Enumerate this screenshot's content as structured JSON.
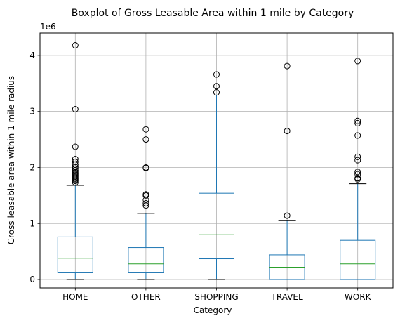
{
  "chart_data": {
    "type": "boxplot",
    "title": "Boxplot of Gross Leasable Area within 1 mile by Category",
    "xlabel": "Category",
    "ylabel": "Gross leasable area within 1 mile radius",
    "y_offset_label": "1e6",
    "y_scale": 1000000,
    "ylim": [
      -150000,
      4400000
    ],
    "yticks": [
      0,
      1000000,
      2000000,
      3000000,
      4000000
    ],
    "ytick_labels": [
      "0",
      "1",
      "2",
      "3",
      "4"
    ],
    "grid": true,
    "colors": {
      "box": "#1f77b4",
      "median": "#2ca02c",
      "whisker_cap": "#000000",
      "grid": "#b0b0b0"
    },
    "categories": [
      "HOME",
      "OTHER",
      "SHOPPING",
      "TRAVEL",
      "WORK"
    ],
    "boxes": [
      {
        "category": "HOME",
        "whisker_low": 0,
        "q1": 120000,
        "median": 380000,
        "q3": 760000,
        "whisker_high": 1680000,
        "outliers": [
          1730000,
          1760000,
          1780000,
          1800000,
          1820000,
          1840000,
          1860000,
          1880000,
          1900000,
          1920000,
          1950000,
          1980000,
          2010000,
          2050000,
          2100000,
          2150000,
          2370000,
          3040000,
          4180000
        ]
      },
      {
        "category": "OTHER",
        "whisker_low": 0,
        "q1": 120000,
        "median": 280000,
        "q3": 570000,
        "whisker_high": 1180000,
        "outliers": [
          1320000,
          1360000,
          1420000,
          1500000,
          1520000,
          1990000,
          2000000,
          2500000,
          2680000
        ]
      },
      {
        "category": "SHOPPING",
        "whisker_low": 0,
        "q1": 370000,
        "median": 800000,
        "q3": 1540000,
        "whisker_high": 3290000,
        "outliers": [
          3340000,
          3450000,
          3660000
        ]
      },
      {
        "category": "TRAVEL",
        "whisker_low": 0,
        "q1": 0,
        "median": 220000,
        "q3": 440000,
        "whisker_high": 1050000,
        "outliers": [
          1140000,
          2650000,
          3810000
        ]
      },
      {
        "category": "WORK",
        "whisker_low": 0,
        "q1": 0,
        "median": 280000,
        "q3": 700000,
        "whisker_high": 1710000,
        "outliers": [
          1790000,
          1810000,
          1880000,
          1920000,
          2130000,
          2190000,
          2570000,
          2790000,
          2830000,
          3900000
        ]
      }
    ]
  }
}
